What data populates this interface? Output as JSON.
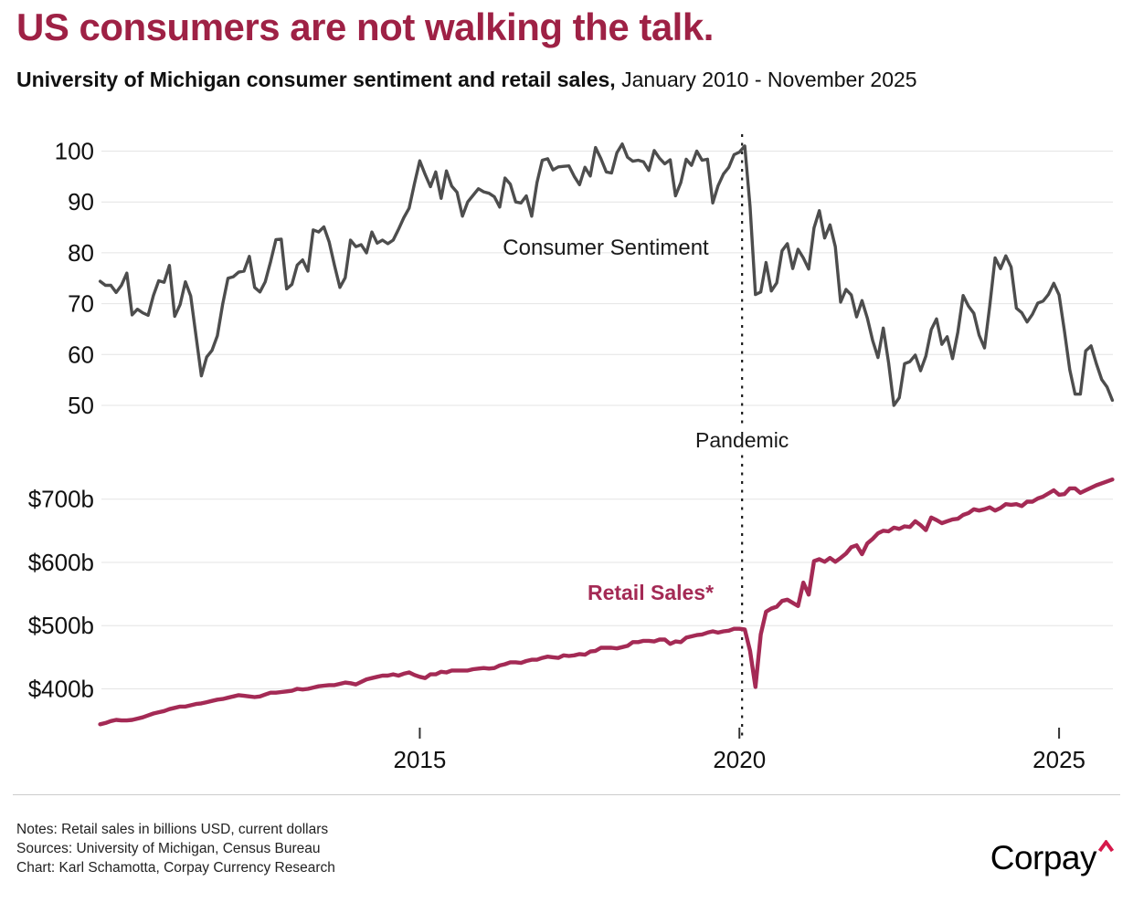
{
  "header": {
    "title": "US consumers are not walking the talk.",
    "subtitle_bold": "University of Michigan consumer sentiment and retail sales,",
    "subtitle_regular": " January 2010 - November 2025"
  },
  "footer": {
    "notes_line1": "Notes: Retail sales in billions USD, current dollars",
    "notes_line2": "Sources: University of Michigan, Census Bureau",
    "notes_line3": "Chart: Karl Schamotta, Corpay Currency Research",
    "logo_text": "Corpay"
  },
  "colors": {
    "title_maroon": "#9E2145",
    "retail_line": "#A42A55",
    "sentiment_line": "#4D4D4D",
    "axis_text": "#111111",
    "gridline": "#e4e4e4",
    "dashed_line": "#1a1a1a",
    "logo_caret": "#D6194B"
  },
  "chart_data": {
    "type": "line",
    "x": {
      "start": "2010-01",
      "end": "2025-11",
      "months": 191,
      "ticks": [
        2015,
        2020,
        2025
      ]
    },
    "top_panel": {
      "label": "Consumer Sentiment",
      "y_ticks": [
        {
          "v": 100,
          "label": "100"
        },
        {
          "v": 90,
          "label": "90"
        },
        {
          "v": 80,
          "label": "80"
        },
        {
          "v": 70,
          "label": "70"
        },
        {
          "v": 60,
          "label": "60"
        },
        {
          "v": 50,
          "label": "50"
        }
      ],
      "ylim": [
        47,
        104
      ]
    },
    "bottom_panel": {
      "label": "Retail Sales*",
      "y_ticks": [
        {
          "v": 700,
          "label": "$700b"
        },
        {
          "v": 600,
          "label": "$600b"
        },
        {
          "v": 500,
          "label": "$500b"
        },
        {
          "v": 400,
          "label": "$400b"
        }
      ],
      "ylim": [
        330,
        760
      ]
    },
    "annotation": {
      "label": "Pandemic",
      "month_index": 120.5
    },
    "series": [
      {
        "name": "Consumer Sentiment",
        "panel": "top",
        "color": "#4D4D4D",
        "values": [
          74.4,
          73.6,
          73.6,
          72.2,
          73.6,
          76,
          67.8,
          68.9,
          68.2,
          67.7,
          71.6,
          74.5,
          74.2,
          77.5,
          67.5,
          69.8,
          74.3,
          71.5,
          63.7,
          55.8,
          59.5,
          60.8,
          63.7,
          69.9,
          75,
          75.3,
          76.2,
          76.4,
          79.3,
          73.2,
          72.3,
          74.3,
          78.3,
          82.6,
          82.7,
          72.9,
          73.8,
          77.6,
          78.6,
          76.4,
          84.5,
          84.1,
          85.1,
          82.1,
          77.5,
          73.2,
          75.1,
          82.5,
          81.2,
          81.6,
          80,
          84.1,
          81.9,
          82.5,
          81.8,
          82.5,
          84.6,
          86.9,
          88.8,
          93.6,
          98.1,
          95.4,
          93,
          95.9,
          90.7,
          96.1,
          93.1,
          91.9,
          87.2,
          90,
          91.3,
          92.6,
          92,
          91.7,
          91,
          89,
          94.7,
          93.5,
          90,
          89.8,
          91.2,
          87.2,
          93.8,
          98.2,
          98.5,
          96.3,
          96.9,
          97,
          97.1,
          95,
          93.4,
          96.8,
          95.1,
          100.7,
          98.5,
          95.9,
          95.7,
          99.7,
          101.4,
          98.8,
          98,
          98.2,
          97.9,
          96.2,
          100.1,
          98.6,
          97.5,
          98.3,
          91.2,
          93.8,
          98.4,
          97.2,
          100,
          98.2,
          98.4,
          89.8,
          93.2,
          95.5,
          96.8,
          99.3,
          99.8,
          101,
          89.1,
          71.8,
          72.3,
          78.1,
          72.5,
          74.1,
          80.4,
          81.8,
          76.9,
          80.7,
          79,
          76.8,
          84.9,
          88.3,
          82.9,
          85.5,
          81.2,
          70.3,
          72.8,
          71.7,
          67.4,
          70.6,
          67.2,
          62.8,
          59.4,
          65.2,
          58.4,
          50,
          51.5,
          58.2,
          58.6,
          59.9,
          56.8,
          59.7,
          64.9,
          67,
          62,
          63.5,
          59.2,
          64.4,
          71.6,
          69.5,
          68.1,
          63.8,
          61.3,
          69.7,
          79,
          76.9,
          79.4,
          77.2,
          69.1,
          68.2,
          66.4,
          67.9,
          70.1,
          70.5,
          71.8,
          74,
          71.7,
          64.7,
          57,
          52.2,
          52.2,
          60.7,
          61.7,
          58.2,
          55.1,
          53.6,
          51
        ]
      },
      {
        "name": "Retail Sales*",
        "panel": "bottom",
        "color": "#A42A55",
        "values": [
          344,
          346,
          349,
          351,
          350,
          350,
          351,
          353,
          355,
          358,
          361,
          363,
          365,
          368,
          370,
          372,
          372,
          374,
          376,
          377,
          379,
          381,
          383,
          384,
          386,
          388,
          390,
          389,
          388,
          387,
          388,
          391,
          394,
          394,
          395,
          396,
          397,
          400,
          399,
          400,
          402,
          404,
          405,
          406,
          406,
          408,
          410,
          409,
          407,
          411,
          415,
          417,
          419,
          421,
          421,
          423,
          421,
          424,
          426,
          422,
          419,
          417,
          423,
          423,
          427,
          426,
          429,
          429,
          429,
          429,
          431,
          432,
          433,
          432,
          433,
          437,
          439,
          442,
          442,
          441,
          444,
          446,
          446,
          449,
          451,
          450,
          449,
          453,
          452,
          453,
          455,
          454,
          459,
          460,
          465,
          465,
          465,
          464,
          466,
          468,
          474,
          474,
          476,
          476,
          475,
          478,
          478,
          471,
          475,
          474,
          481,
          483,
          485,
          486,
          489,
          491,
          489,
          491,
          492,
          495,
          495,
          494,
          460,
          403,
          486,
          522,
          527,
          530,
          539,
          541,
          536,
          531,
          568,
          549,
          602,
          605,
          601,
          607,
          601,
          607,
          614,
          624,
          627,
          613,
          630,
          637,
          646,
          650,
          649,
          655,
          653,
          657,
          656,
          665,
          659,
          651,
          671,
          667,
          662,
          665,
          668,
          669,
          675,
          678,
          684,
          682,
          684,
          687,
          682,
          686,
          692,
          691,
          692,
          689,
          696,
          696,
          701,
          704,
          709,
          714,
          707,
          708,
          717,
          717,
          710,
          714,
          718,
          722,
          725,
          728,
          731
        ]
      }
    ]
  }
}
